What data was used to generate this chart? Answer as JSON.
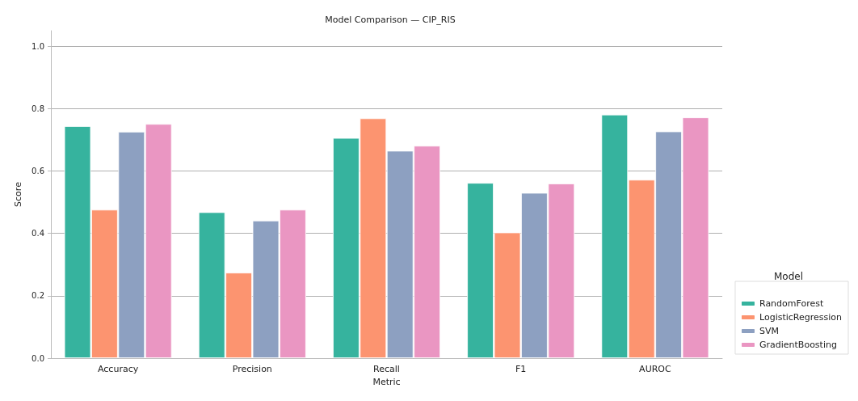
{
  "chart_data": {
    "type": "bar",
    "title": "Model Comparison — CIP_RIS",
    "xlabel": "Metric",
    "ylabel": "Score",
    "legend_title": "Model",
    "categories": [
      "Accuracy",
      "Precision",
      "Recall",
      "F1",
      "AUROC"
    ],
    "series": [
      {
        "name": "RandomForest",
        "color": "#36b39e",
        "values": [
          0.744,
          0.468,
          0.706,
          0.562,
          0.781
        ]
      },
      {
        "name": "LogisticRegression",
        "color": "#fc9470",
        "values": [
          0.476,
          0.274,
          0.769,
          0.403,
          0.572
        ]
      },
      {
        "name": "SVM",
        "color": "#8da0c1",
        "values": [
          0.726,
          0.441,
          0.665,
          0.53,
          0.727
        ]
      },
      {
        "name": "GradientBoosting",
        "color": "#ea96c2",
        "values": [
          0.751,
          0.476,
          0.681,
          0.56,
          0.772
        ]
      }
    ],
    "ylim": [
      0,
      1.05
    ],
    "yticks": [
      {
        "value": 0,
        "label": "0.0"
      },
      {
        "value": 0.2,
        "label": "0.2"
      },
      {
        "value": 0.4,
        "label": "0.4"
      },
      {
        "value": 0.6,
        "label": "0.6"
      },
      {
        "value": 0.8,
        "label": "0.8"
      },
      {
        "value": 1,
        "label": "1.0"
      }
    ],
    "grid": "y",
    "legend": "bottom right"
  }
}
